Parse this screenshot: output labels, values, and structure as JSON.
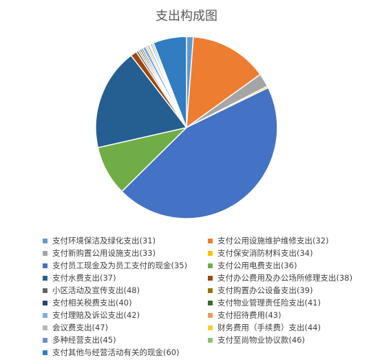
{
  "chart_data": {
    "type": "pie",
    "title": "支出构成图",
    "legend_position": "bottom",
    "slices": [
      {
        "label": "支付环境保洁及绿化支出(31)",
        "value": 1.2,
        "color": "#5b9bd5"
      },
      {
        "label": "支付公用设施维护维修支出(32)",
        "value": 13.8,
        "color": "#ed7d31"
      },
      {
        "label": "支付新购置公用设施支出(33)",
        "value": 2.4,
        "color": "#a5a5a5"
      },
      {
        "label": "支付保安消防材料支出(34)",
        "value": 0.3,
        "color": "#ffc000"
      },
      {
        "label": "支付员工现金及为员工支付的现金(35)",
        "value": 44.6,
        "color": "#4472c4"
      },
      {
        "label": "支付公用电费支出(36)",
        "value": 8.8,
        "color": "#70ad47"
      },
      {
        "label": "支付水费支出(37)",
        "value": 18.0,
        "color": "#255e91"
      },
      {
        "label": "支付办公费用及办公场所修理支出(38)",
        "value": 1.1,
        "color": "#9e480e"
      },
      {
        "label": "小区活动及宣传支出(48)",
        "value": 0.4,
        "color": "#636363"
      },
      {
        "label": "支付购置办公设备支出(39)",
        "value": 0.3,
        "color": "#997300"
      },
      {
        "label": "支付相关税费支出(40)",
        "value": 0.3,
        "color": "#264478"
      },
      {
        "label": "支付物业管理责任险支出(41)",
        "value": 0.3,
        "color": "#43682b"
      },
      {
        "label": "支付理赔及诉讼支出(42)",
        "value": 0.6,
        "color": "#7cafdd"
      },
      {
        "label": "支付招待费用(43)",
        "value": 0.3,
        "color": "#f1975a"
      },
      {
        "label": "会议费支出(47)",
        "value": 0.4,
        "color": "#b7b7b7"
      },
      {
        "label": "财务费用（手续费）支出(44)",
        "value": 0.2,
        "color": "#ffcd33"
      },
      {
        "label": "多种经营支出(45)",
        "value": 0.3,
        "color": "#698ed0"
      },
      {
        "label": "支付至尚物业协议款(46)",
        "value": 0.3,
        "color": "#8cc168"
      },
      {
        "label": "支付其他与经营活动有关的现金(60)",
        "value": 5.9,
        "color": "#327dc2"
      }
    ]
  }
}
